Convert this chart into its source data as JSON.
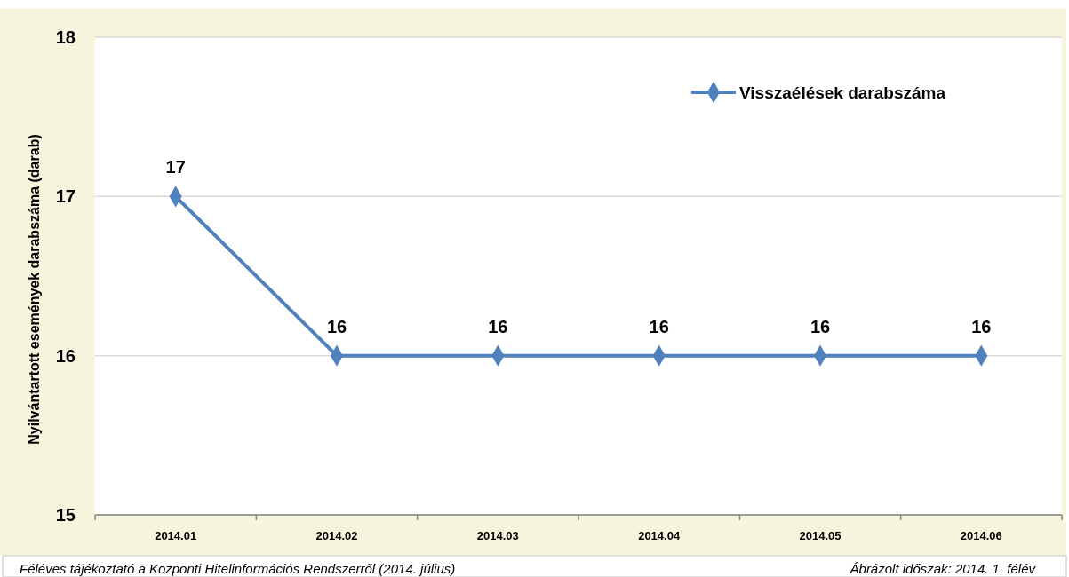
{
  "chart_data": {
    "type": "line",
    "ylabel": "Nyilvántartott események darabszáma (darab)",
    "categories": [
      "2014.01",
      "2014.02",
      "2014.03",
      "2014.04",
      "2014.05",
      "2014.06"
    ],
    "series": [
      {
        "name": "Visszaélések darabszáma",
        "color": "#4f81bd",
        "values": [
          17,
          16,
          16,
          16,
          16,
          16
        ]
      }
    ],
    "ylim": [
      15,
      18
    ],
    "yticks": [
      15,
      16,
      17,
      18
    ],
    "grid": "y",
    "legend": "top right",
    "marker": "diamond",
    "data_labels": true,
    "annotations": [
      "Féléves tájékoztató a Központi Hitelinformációs Rendszerről (2014. július)",
      "Ábrázolt időszak: 2014. 1. félév"
    ]
  }
}
